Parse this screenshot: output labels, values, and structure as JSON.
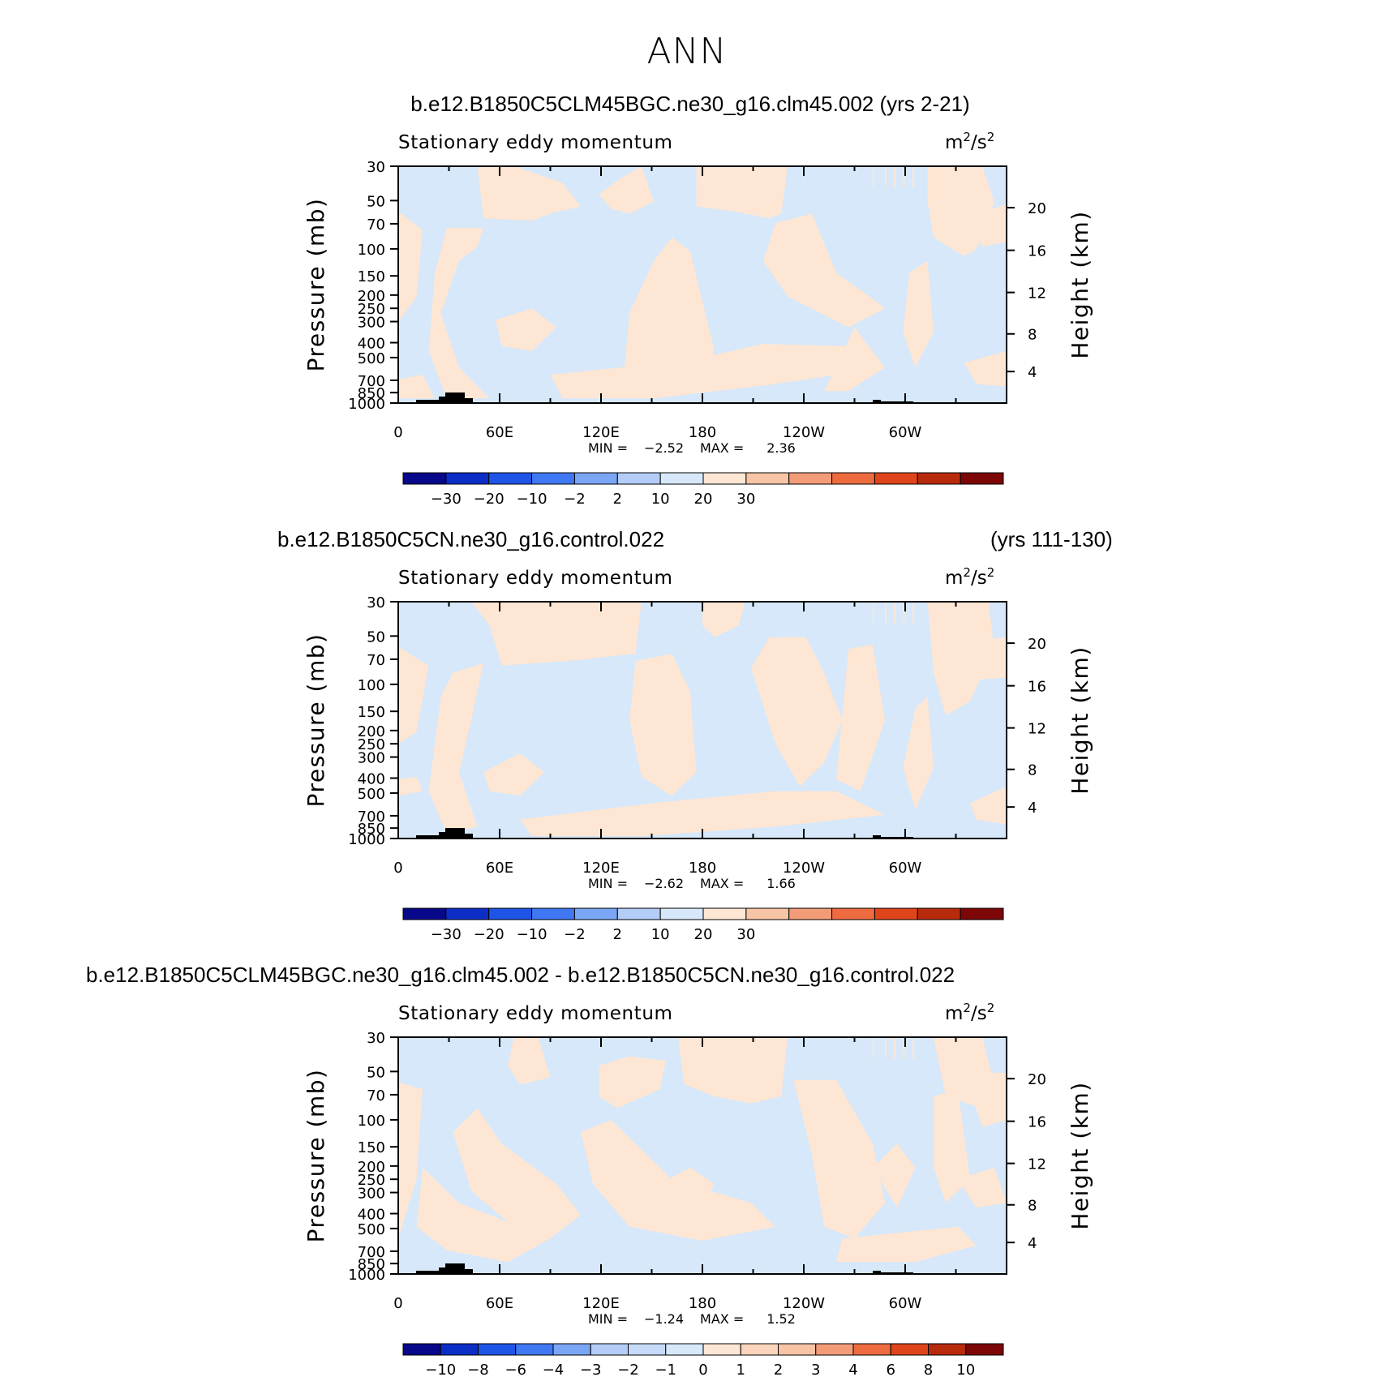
{
  "title": "ANN",
  "panels": [
    {
      "case_title": "b.e12.B1850C5CLM45BGC.ne30_g16.clm45.002 (yrs 2-21)",
      "years": "",
      "left_label": "Stationary eddy momentum",
      "units_base": "m",
      "units_sup1": "2",
      "units_mid": "/s",
      "units_sup2": "2",
      "min_label": "MIN =",
      "min_value": "−2.52",
      "max_label": "MAX =",
      "max_value": "2.36",
      "colorbar_ticks": [
        "−30",
        "−20",
        "−10",
        "−2",
        "2",
        "10",
        "20",
        "30"
      ]
    },
    {
      "case_title": "b.e12.B1850C5CN.ne30_g16.control.022",
      "years": "(yrs 111-130)",
      "left_label": "Stationary eddy momentum",
      "units_base": "m",
      "units_sup1": "2",
      "units_mid": "/s",
      "units_sup2": "2",
      "min_label": "MIN =",
      "min_value": "−2.62",
      "max_label": "MAX =",
      "max_value": "1.66",
      "colorbar_ticks": [
        "−30",
        "−20",
        "−10",
        "−2",
        "2",
        "10",
        "20",
        "30"
      ]
    },
    {
      "case_title": "b.e12.B1850C5CLM45BGC.ne30_g16.clm45.002 - b.e12.B1850C5CN.ne30_g16.control.022",
      "years": "",
      "left_label": "Stationary eddy momentum",
      "units_base": "m",
      "units_sup1": "2",
      "units_mid": "/s",
      "units_sup2": "2",
      "min_label": "MIN =",
      "min_value": "−1.24",
      "max_label": "MAX =",
      "max_value": "1.52",
      "colorbar_ticks": [
        "−10",
        "−8",
        "−6",
        "−4",
        "−3",
        "−2",
        "−1",
        "0",
        "1",
        "2",
        "3",
        "4",
        "6",
        "8",
        "10"
      ]
    }
  ],
  "chart_data": {
    "type": "heatmap",
    "x_axis": {
      "ticks": [
        "0",
        "60E",
        "120E",
        "180",
        "120W",
        "60W"
      ]
    },
    "y_axis_left": {
      "label": "Pressure (mb)",
      "ticks": [
        "30",
        "50",
        "70",
        "100",
        "150",
        "200",
        "250",
        "300",
        "400",
        "500",
        "700",
        "850",
        "1000"
      ]
    },
    "y_axis_right": {
      "label": "Height (km)",
      "ticks": [
        "20",
        "16",
        "12",
        "8",
        "4"
      ]
    },
    "colors": {
      "positive_fill": "#FDE6D4",
      "negative_fill": "#D6E8FA",
      "topography": "#000000",
      "colorbar_main": [
        "#08088A",
        "#0C2EC7",
        "#1E55E6",
        "#3F78F2",
        "#7AA6F5",
        "#B3CDF7",
        "#D6E8FA",
        "#FDE6D4",
        "#F8C4A6",
        "#F39C78",
        "#EE6B40",
        "#E0441A",
        "#B82A0C",
        "#7D0606"
      ],
      "colorbar_diff": [
        "#08088A",
        "#0C2EC7",
        "#1E55E6",
        "#3F78F2",
        "#7AA6F5",
        "#B3CDF7",
        "#C6DBF8",
        "#D6E8FA",
        "#FDE6D4",
        "#FAD4BD",
        "#F8C4A6",
        "#F39C78",
        "#EE6B40",
        "#E0441A",
        "#B82A0C",
        "#7D0606"
      ]
    }
  }
}
